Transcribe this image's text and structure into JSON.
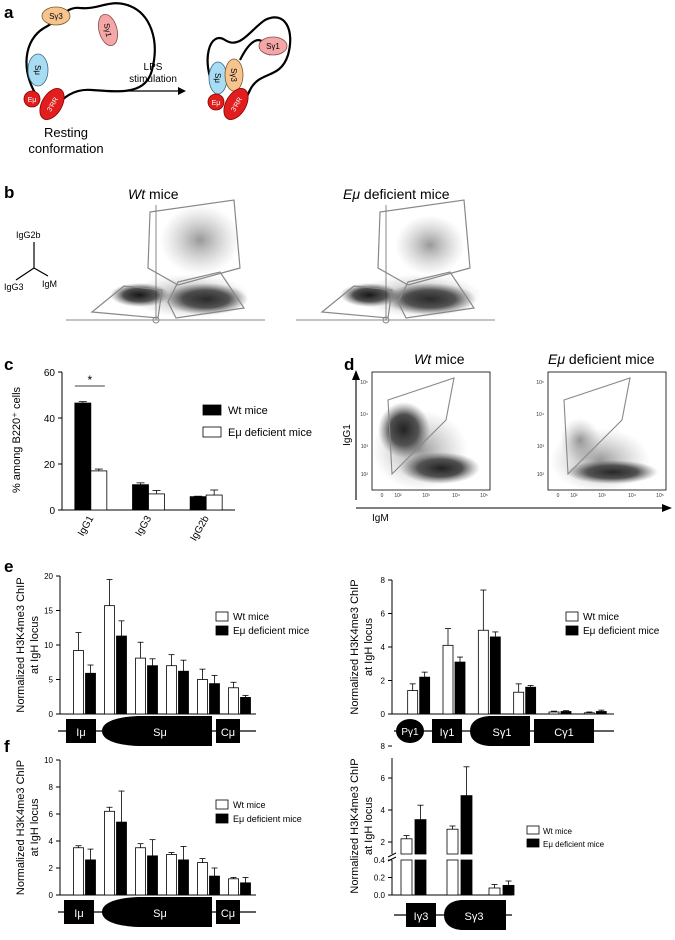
{
  "panels": {
    "a": "a",
    "b": "b",
    "c": "c",
    "d": "d",
    "e": "e",
    "f": "f"
  },
  "panel_a": {
    "labels": {
      "sg3": "Sγ3",
      "sg1": "Sγ1",
      "smu": "Sμ",
      "emu": "Eμ",
      "rr": "3'RR"
    },
    "arrow_label_line1": "LPS",
    "arrow_label_line2": "stimulation",
    "caption_line1": "Resting",
    "caption_line2": "conformation"
  },
  "panel_b": {
    "title_wt": "Wt",
    "title_wt_suffix": " mice",
    "title_emu": "Eμ",
    "title_emu_suffix": " deficient  mice",
    "axis_igg2b": "IgG2b",
    "axis_igg3": "IgG3",
    "axis_igm": "IgM"
  },
  "panel_c": {
    "chart_data": {
      "type": "bar",
      "categories": [
        "IgG1",
        "IgG3",
        "IgG2b"
      ],
      "series": [
        {
          "name": "Wt mice",
          "values": [
            46.5,
            11,
            5.8
          ],
          "errors": [
            0.6,
            0.8,
            0.2
          ],
          "color": "#000000"
        },
        {
          "name": "Eμ deficient mice",
          "values": [
            17,
            7,
            6.5
          ],
          "errors": [
            0.8,
            1.5,
            2.2
          ],
          "color": "#ffffff"
        }
      ],
      "ylim": [
        0,
        60
      ],
      "yticks": [
        "0",
        "20",
        "40",
        "60"
      ],
      "ylabel": "% among B220⁺ cells",
      "significance": "*"
    }
  },
  "panel_d": {
    "title_wt": "Wt",
    "title_wt_suffix": " mice",
    "title_emu": "Eμ",
    "title_emu_suffix": " deficient  mice",
    "ylabel": "IgG1",
    "xlabel": "IgM",
    "ticks": [
      "10²",
      "10³",
      "10⁴",
      "10⁵"
    ],
    "xticks": [
      "0",
      "10²",
      "10³",
      "10⁴",
      "10⁵"
    ]
  },
  "panel_e1": {
    "chart_data": {
      "type": "bar",
      "n_bins": 8,
      "series": [
        {
          "name": "Wt mice",
          "values": [
            9.2,
            15.7,
            8.1,
            7.0,
            5.0,
            3.8
          ],
          "errors": [
            2.6,
            3.8,
            2.3,
            1.6,
            1.5,
            0.8
          ],
          "color": "#ffffff"
        },
        {
          "name": "Eμ deficient mice",
          "values": [
            5.9,
            11.3,
            7.0,
            6.2,
            4.4,
            2.4
          ],
          "errors": [
            1.2,
            2.2,
            1.0,
            1.6,
            1.2,
            0.3
          ],
          "color": "#000000"
        }
      ],
      "ylim": [
        0,
        20
      ],
      "yticks": [
        "0",
        "5",
        "10",
        "15",
        "20"
      ],
      "ylabel_line1": "Normalized H3K4me3 ChIP",
      "ylabel_line2": "at IgH locus",
      "legend": [
        "Wt mice",
        "Eμ deficient mice"
      ],
      "legend_italic_prefix": "Wt"
    },
    "gene_labels": [
      "Iμ",
      "Sμ",
      "Cμ"
    ]
  },
  "panel_e2": {
    "chart_data": {
      "type": "bar",
      "n_bins": 8,
      "series": [
        {
          "name": "Wt mice",
          "values": [
            1.4,
            4.1,
            5.0,
            1.3,
            0.12,
            0.07
          ],
          "errors": [
            0.4,
            1.0,
            2.4,
            0.5,
            0.05,
            0.05
          ],
          "color": "#ffffff"
        },
        {
          "name": "Eμ deficient mice",
          "values": [
            2.2,
            3.1,
            4.6,
            1.6,
            0.15,
            0.15
          ],
          "errors": [
            0.3,
            0.3,
            0.3,
            0.1,
            0.05,
            0.08
          ],
          "color": "#000000"
        }
      ],
      "ylim": [
        0,
        8
      ],
      "yticks": [
        "0",
        "2",
        "4",
        "6",
        "8"
      ],
      "ylabel_line1": "Normalized H3K4me3 ChIP",
      "ylabel_line2": "at IgH locus",
      "legend": [
        "Wt mice",
        "Eμ deficient mice"
      ]
    },
    "gene_labels": [
      "Pγ1",
      "Iγ1",
      "Sγ1",
      "Cγ1"
    ]
  },
  "panel_f1": {
    "chart_data": {
      "type": "bar",
      "n_bins": 8,
      "series": [
        {
          "name": "Wt mice",
          "values": [
            3.5,
            6.2,
            3.5,
            3.0,
            2.4,
            1.2
          ],
          "errors": [
            0.15,
            0.3,
            0.3,
            0.15,
            0.3,
            0.1
          ],
          "color": "#ffffff"
        },
        {
          "name": "Eμ deficient mice",
          "values": [
            2.6,
            5.4,
            2.9,
            2.6,
            1.4,
            0.9
          ],
          "errors": [
            0.8,
            2.3,
            1.2,
            1.0,
            0.6,
            0.4
          ],
          "color": "#000000"
        }
      ],
      "ylim": [
        0,
        10
      ],
      "yticks": [
        "0",
        "2",
        "4",
        "6",
        "8",
        "10"
      ],
      "ylabel_line1": "Normalized H3K4me3 ChIP",
      "ylabel_line2": "at IgH locus",
      "legend": [
        "Wt mice",
        "Eμ deficient mice"
      ]
    },
    "gene_labels": [
      "Iμ",
      "Sμ",
      "Cμ"
    ]
  },
  "panel_f2": {
    "chart_data": {
      "type": "bar",
      "n_bins": 2,
      "series": [
        {
          "name": "Wt mice",
          "values": [
            2.2,
            2.8,
            0.08
          ],
          "errors": [
            0.2,
            0.2,
            0.04
          ],
          "color": "#ffffff"
        },
        {
          "name": "Eμ deficient mice",
          "values": [
            3.4,
            4.9,
            0.11
          ],
          "errors": [
            0.9,
            1.8,
            0.05
          ],
          "color": "#000000"
        }
      ],
      "yticks_low": [
        "0.0",
        "0.2",
        "0.4"
      ],
      "yticks_high": [
        "2",
        "4",
        "6",
        "8"
      ],
      "ylabel_line1": "Normalized H3K4me3 ChIP",
      "ylabel_line2": "at IgH locus",
      "legend": [
        "Wt mice",
        "Eμ deficient mice"
      ]
    },
    "gene_labels": [
      "Iγ3",
      "Sγ3"
    ]
  }
}
